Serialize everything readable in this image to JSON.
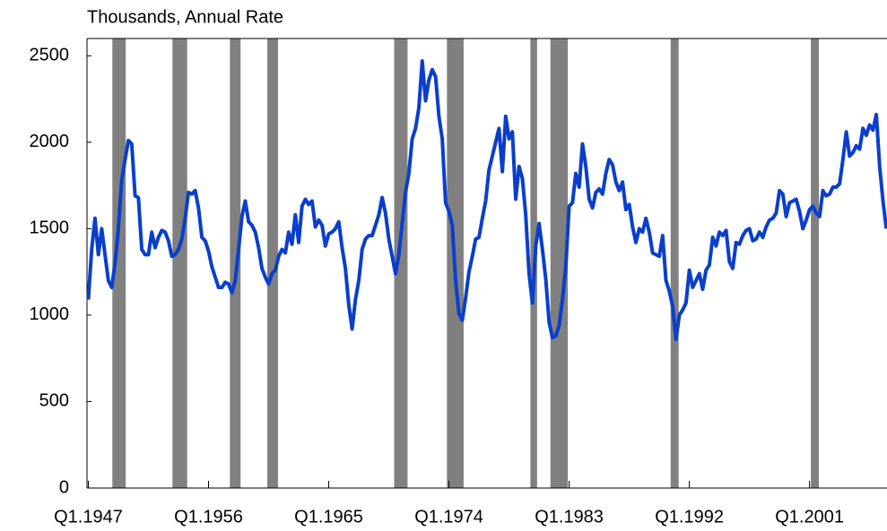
{
  "chart_data": {
    "type": "line",
    "subtitle": "Thousands, Annual Rate",
    "x": [
      1947,
      1947.25,
      1947.5,
      1947.75,
      1948,
      1948.25,
      1948.5,
      1948.75,
      1949,
      1949.25,
      1949.5,
      1949.75,
      1950,
      1950.25,
      1950.5,
      1950.75,
      1951,
      1951.25,
      1951.5,
      1951.75,
      1952,
      1952.25,
      1952.5,
      1952.75,
      1953,
      1953.25,
      1953.5,
      1953.75,
      1954,
      1954.25,
      1954.5,
      1954.75,
      1955,
      1955.25,
      1955.5,
      1955.75,
      1956,
      1956.25,
      1956.5,
      1956.75,
      1957,
      1957.25,
      1957.5,
      1957.75,
      1958,
      1958.25,
      1958.5,
      1958.75,
      1959,
      1959.25,
      1959.5,
      1959.75,
      1960,
      1960.25,
      1960.5,
      1960.75,
      1961,
      1961.25,
      1961.5,
      1961.75,
      1962,
      1962.25,
      1962.5,
      1962.75,
      1963,
      1963.25,
      1963.5,
      1963.75,
      1964,
      1964.25,
      1964.5,
      1964.75,
      1965,
      1965.25,
      1965.5,
      1965.75,
      1966,
      1966.25,
      1966.5,
      1966.75,
      1967,
      1967.25,
      1967.5,
      1967.75,
      1968,
      1968.25,
      1968.5,
      1968.75,
      1969,
      1969.25,
      1969.5,
      1969.75,
      1970,
      1970.25,
      1970.5,
      1970.75,
      1971,
      1971.25,
      1971.5,
      1971.75,
      1972,
      1972.25,
      1972.5,
      1972.75,
      1973,
      1973.25,
      1973.5,
      1973.75,
      1974,
      1974.25,
      1974.5,
      1974.75,
      1975,
      1975.25,
      1975.5,
      1975.75,
      1976,
      1976.25,
      1976.5,
      1976.75,
      1977,
      1977.25,
      1977.5,
      1977.75,
      1978,
      1978.25,
      1978.5,
      1978.75,
      1979,
      1979.25,
      1979.5,
      1979.75,
      1980,
      1980.25,
      1980.5,
      1980.75,
      1981,
      1981.25,
      1981.5,
      1981.75,
      1982,
      1982.25,
      1982.5,
      1982.75,
      1983,
      1983.25,
      1983.5,
      1983.75,
      1984,
      1984.25,
      1984.5,
      1984.75,
      1985,
      1985.25,
      1985.5,
      1985.75,
      1986,
      1986.25,
      1986.5,
      1986.75,
      1987,
      1987.25,
      1987.5,
      1987.75,
      1988,
      1988.25,
      1988.5,
      1988.75,
      1989,
      1989.25,
      1989.5,
      1989.75,
      1990,
      1990.25,
      1990.5,
      1990.75,
      1991,
      1991.25,
      1991.5,
      1991.75,
      1992,
      1992.25,
      1992.5,
      1992.75,
      1993,
      1993.25,
      1993.5,
      1993.75,
      1994,
      1994.25,
      1994.5,
      1994.75,
      1995,
      1995.25,
      1995.5,
      1995.75,
      1996,
      1996.25,
      1996.5,
      1996.75,
      1997,
      1997.25,
      1997.5,
      1997.75,
      1998,
      1998.25,
      1998.5,
      1998.75,
      1999,
      1999.25,
      1999.5,
      1999.75,
      2000,
      2000.25,
      2000.5,
      2000.75,
      2001,
      2001.25,
      2001.5,
      2001.75,
      2002,
      2002.25,
      2002.5,
      2002.75,
      2003,
      2003.25,
      2003.5,
      2003.75,
      2004,
      2004.25,
      2004.5,
      2004.75,
      2005,
      2005.25,
      2005.5,
      2005.75,
      2006,
      2006.25,
      2006.5,
      2006.75
    ],
    "series": [
      {
        "color": "#0a3fcc",
        "values": [
          1090,
          1380,
          1560,
          1350,
          1500,
          1350,
          1200,
          1160,
          1300,
          1500,
          1780,
          1900,
          2010,
          1990,
          1690,
          1680,
          1380,
          1350,
          1350,
          1480,
          1390,
          1450,
          1490,
          1480,
          1430,
          1340,
          1350,
          1380,
          1440,
          1560,
          1710,
          1700,
          1720,
          1620,
          1450,
          1430,
          1370,
          1280,
          1220,
          1160,
          1160,
          1190,
          1180,
          1130,
          1200,
          1380,
          1570,
          1660,
          1540,
          1520,
          1480,
          1390,
          1270,
          1220,
          1180,
          1240,
          1260,
          1340,
          1380,
          1360,
          1480,
          1410,
          1580,
          1420,
          1630,
          1670,
          1640,
          1660,
          1510,
          1550,
          1520,
          1400,
          1470,
          1480,
          1500,
          1540,
          1390,
          1270,
          1060,
          920,
          1090,
          1200,
          1380,
          1440,
          1460,
          1460,
          1520,
          1580,
          1680,
          1590,
          1440,
          1340,
          1240,
          1350,
          1530,
          1710,
          1820,
          2020,
          2080,
          2200,
          2470,
          2240,
          2360,
          2420,
          2380,
          2150,
          2020,
          1650,
          1600,
          1520,
          1200,
          1010,
          970,
          1100,
          1250,
          1340,
          1440,
          1450,
          1560,
          1660,
          1840,
          1920,
          2000,
          2080,
          1830,
          2150,
          2020,
          2060,
          1670,
          1860,
          1790,
          1580,
          1240,
          1070,
          1400,
          1530,
          1380,
          1210,
          960,
          870,
          880,
          940,
          1090,
          1280,
          1630,
          1650,
          1820,
          1740,
          1990,
          1860,
          1670,
          1620,
          1710,
          1730,
          1700,
          1820,
          1900,
          1870,
          1770,
          1720,
          1770,
          1610,
          1640,
          1510,
          1420,
          1500,
          1480,
          1560,
          1480,
          1360,
          1350,
          1340,
          1460,
          1200,
          1140,
          1050,
          860,
          1000,
          1030,
          1070,
          1260,
          1160,
          1200,
          1240,
          1150,
          1260,
          1290,
          1450,
          1400,
          1480,
          1460,
          1490,
          1310,
          1270,
          1420,
          1410,
          1460,
          1490,
          1500,
          1430,
          1440,
          1480,
          1450,
          1510,
          1550,
          1560,
          1590,
          1720,
          1700,
          1570,
          1650,
          1660,
          1670,
          1600,
          1500,
          1550,
          1610,
          1630,
          1590,
          1570,
          1720,
          1690,
          1700,
          1740,
          1740,
          1760,
          1900,
          2060,
          1920,
          1940,
          1980,
          1960,
          2080,
          2040,
          2100,
          2070,
          2160,
          1860,
          1660,
          1500
        ]
      }
    ],
    "recessions": [
      [
        1948.8,
        1949.8
      ],
      [
        1953.3,
        1954.4
      ],
      [
        1957.6,
        1958.4
      ],
      [
        1960.4,
        1961.2
      ],
      [
        1969.9,
        1970.9
      ],
      [
        1973.85,
        1975.1
      ],
      [
        1980.1,
        1980.6
      ],
      [
        1981.6,
        1982.9
      ],
      [
        1990.6,
        1991.2
      ],
      [
        2001.1,
        2001.7
      ]
    ],
    "recession_color": "#808080",
    "xlim": [
      1946.9,
      2006.8
    ],
    "xticks": [
      {
        "value": 1947,
        "label": "Q1.1947"
      },
      {
        "value": 1956,
        "label": "Q1.1956"
      },
      {
        "value": 1965,
        "label": "Q1.1965"
      },
      {
        "value": 1974,
        "label": "Q1.1974"
      },
      {
        "value": 1983,
        "label": "Q1.1983"
      },
      {
        "value": 1992,
        "label": "Q1.1992"
      },
      {
        "value": 2001,
        "label": "Q1.2001"
      }
    ],
    "ylim": [
      0,
      2600
    ],
    "yticks": [
      0,
      500,
      1000,
      1500,
      2000,
      2500
    ]
  }
}
